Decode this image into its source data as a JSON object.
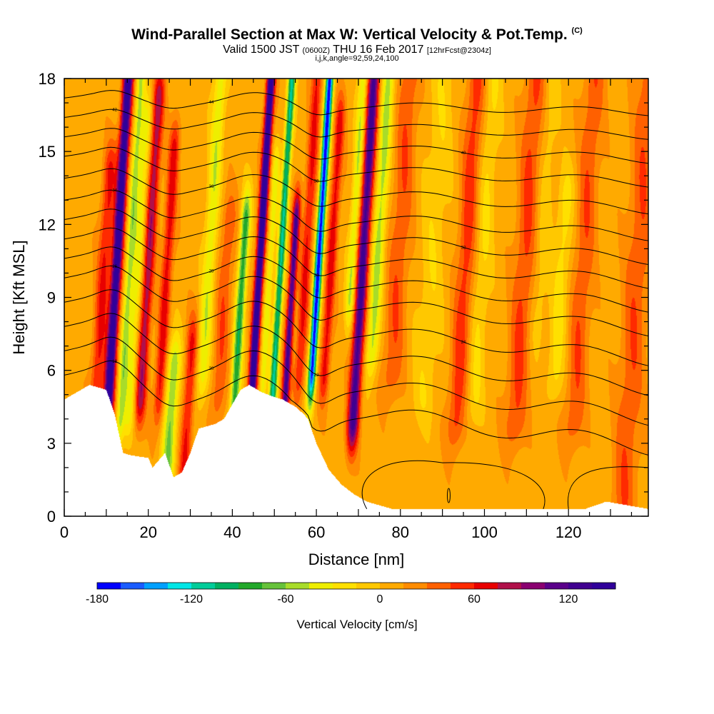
{
  "header": {
    "title": "Wind-Parallel Section at Max W: Vertical Velocity & Pot.Temp.",
    "copyright": "(C)",
    "valid_prefix": "Valid 1500 JST",
    "valid_utc": "(0600Z)",
    "valid_date": "THU 16 Feb 2017",
    "forecast": "[12hrFcst@2304z]",
    "params": "i,j,k,angle=92,59,24,100"
  },
  "chart_data": {
    "type": "heatmap",
    "xlabel": "Distance [nm]",
    "ylabel": "Height [Kft MSL]",
    "xlim": [
      0,
      139
    ],
    "ylim": [
      0,
      18
    ],
    "x_ticks": [
      0,
      20,
      40,
      60,
      80,
      100,
      120
    ],
    "y_ticks": [
      0,
      3,
      6,
      9,
      12,
      15,
      18
    ],
    "colorbar": {
      "label": "Vertical Velocity [cm/s]",
      "levels": [
        -180,
        -165,
        -150,
        -135,
        -120,
        -105,
        -90,
        -75,
        -60,
        -45,
        -30,
        -15,
        0,
        15,
        30,
        45,
        60,
        75,
        90,
        105,
        120,
        135,
        150
      ],
      "tick_values": [
        -180,
        -120,
        -60,
        0,
        60,
        120
      ],
      "colors": [
        "#0000ff",
        "#1a5cff",
        "#00a0ff",
        "#00e6e6",
        "#00cc99",
        "#00b060",
        "#22a82a",
        "#66c23a",
        "#a8dc2a",
        "#eeee00",
        "#ffe000",
        "#ffc800",
        "#ffaa00",
        "#ff8c00",
        "#ff6000",
        "#ff2a00",
        "#e80000",
        "#b0104a",
        "#8a0070",
        "#5a008a",
        "#400090",
        "#30009a"
      ]
    },
    "updrafts": [
      {
        "x_nm": 11,
        "max_cm_s": 150
      },
      {
        "x_nm": 45,
        "max_cm_s": 150
      },
      {
        "x_nm": 53,
        "max_cm_s": 120
      },
      {
        "x_nm": 69,
        "max_cm_s": 120
      }
    ],
    "downdrafts": [
      {
        "x_nm": 59,
        "min_cm_s": -180
      },
      {
        "x_nm": 14,
        "min_cm_s": -60
      },
      {
        "x_nm": 24,
        "min_cm_s": -90
      },
      {
        "x_nm": 50,
        "min_cm_s": -120
      }
    ],
    "terrain_kft": {
      "x": [
        0,
        2,
        6,
        10,
        12,
        14,
        16,
        20,
        21,
        24,
        26,
        28,
        30,
        32,
        36,
        38,
        40,
        42,
        44,
        47,
        50,
        52,
        55,
        57,
        58,
        60,
        63,
        66,
        69,
        72,
        78,
        124,
        129,
        139
      ],
      "y": [
        4.8,
        5.0,
        5.4,
        5.2,
        4.2,
        2.6,
        2.5,
        2.4,
        2.0,
        2.6,
        1.6,
        1.8,
        2.6,
        3.6,
        3.8,
        4.0,
        4.6,
        5.2,
        5.4,
        5.1,
        4.9,
        4.8,
        4.5,
        4.2,
        4.0,
        3.0,
        1.9,
        1.3,
        0.9,
        0.6,
        0.3,
        0.3,
        0.6,
        0.3
      ]
    },
    "isentropes_at_x0_kft": [
      5.8,
      6.8,
      7.8,
      8.8,
      9.8,
      10.6,
      11.4,
      12.2,
      13.0,
      13.9,
      14.8,
      15.6,
      16.4,
      17.2
    ],
    "isentrope_labels": [
      "18",
      "20",
      "22",
      "24",
      "26",
      "28",
      "30",
      "32",
      "34",
      "36",
      "38",
      "40",
      "42",
      "44",
      "46"
    ]
  }
}
